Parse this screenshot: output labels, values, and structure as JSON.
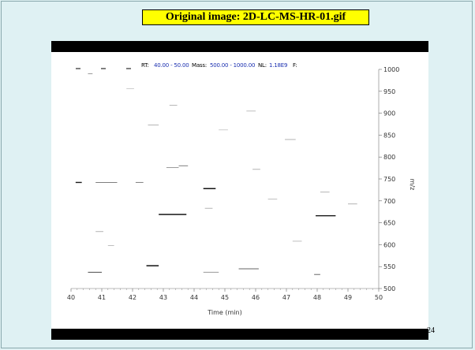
{
  "slide": {
    "title": "Original image: 2D-LC-MS-HR-01.gif",
    "page_number": "24"
  },
  "header": {
    "rt_label": "RT:",
    "rt_value": "40.00 - 50.00",
    "mass_label": "Mass:",
    "mass_value": "500.00 - 1000.00",
    "nl_label": "NL:",
    "nl_value": "1.18E9",
    "f_label": "F:"
  },
  "colors": {
    "background": "#dff1f3",
    "title_highlight": "#ffff00",
    "header_value": "#1a2fb0",
    "peak": "#000000"
  },
  "chart_data": {
    "type": "scatter",
    "title": "",
    "xlabel": "Time (min)",
    "ylabel": "m/z",
    "xlim": [
      40,
      50
    ],
    "ylim": [
      500,
      1000
    ],
    "x_ticks": [
      "40",
      "41",
      "42",
      "43",
      "44",
      "45",
      "46",
      "47",
      "48",
      "49",
      "50"
    ],
    "y_ticks": [
      "500",
      "550",
      "600",
      "650",
      "700",
      "750",
      "800",
      "850",
      "900",
      "950",
      "1000"
    ],
    "grid": false,
    "peaks": [
      {
        "x0": 40.15,
        "x1": 40.35,
        "y": 742,
        "intensity": 0.9
      },
      {
        "x0": 40.8,
        "x1": 41.5,
        "y": 742,
        "intensity": 0.5
      },
      {
        "x0": 42.1,
        "x1": 42.35,
        "y": 742,
        "intensity": 0.5
      },
      {
        "x0": 42.85,
        "x1": 43.75,
        "y": 669,
        "intensity": 1.0
      },
      {
        "x0": 44.3,
        "x1": 44.7,
        "y": 728,
        "intensity": 1.0
      },
      {
        "x0": 47.95,
        "x1": 48.6,
        "y": 666,
        "intensity": 0.9
      },
      {
        "x0": 42.45,
        "x1": 42.85,
        "y": 552,
        "intensity": 1.0
      },
      {
        "x0": 40.55,
        "x1": 41.0,
        "y": 537,
        "intensity": 0.7
      },
      {
        "x0": 45.45,
        "x1": 46.1,
        "y": 545,
        "intensity": 0.6
      },
      {
        "x0": 44.3,
        "x1": 44.8,
        "y": 537,
        "intensity": 0.4
      },
      {
        "x0": 43.5,
        "x1": 43.8,
        "y": 780,
        "intensity": 0.5
      },
      {
        "x0": 43.1,
        "x1": 43.5,
        "y": 776,
        "intensity": 0.4
      },
      {
        "x0": 42.5,
        "x1": 42.85,
        "y": 873,
        "intensity": 0.3
      },
      {
        "x0": 43.2,
        "x1": 43.45,
        "y": 918,
        "intensity": 0.3
      },
      {
        "x0": 46.95,
        "x1": 47.3,
        "y": 840,
        "intensity": 0.3
      },
      {
        "x0": 47.9,
        "x1": 48.1,
        "y": 532,
        "intensity": 0.6
      },
      {
        "x0": 45.9,
        "x1": 46.15,
        "y": 772,
        "intensity": 0.3
      },
      {
        "x0": 44.35,
        "x1": 44.6,
        "y": 683,
        "intensity": 0.3
      },
      {
        "x0": 40.8,
        "x1": 41.05,
        "y": 630,
        "intensity": 0.3
      },
      {
        "x0": 40.55,
        "x1": 40.7,
        "y": 990,
        "intensity": 0.4
      },
      {
        "x0": 48.1,
        "x1": 48.4,
        "y": 720,
        "intensity": 0.3
      },
      {
        "x0": 49.0,
        "x1": 49.3,
        "y": 693,
        "intensity": 0.3
      },
      {
        "x0": 41.2,
        "x1": 41.4,
        "y": 598,
        "intensity": 0.25
      },
      {
        "x0": 46.4,
        "x1": 46.7,
        "y": 704,
        "intensity": 0.25
      },
      {
        "x0": 45.7,
        "x1": 46.0,
        "y": 905,
        "intensity": 0.25
      },
      {
        "x0": 47.2,
        "x1": 47.5,
        "y": 608,
        "intensity": 0.25
      },
      {
        "x0": 41.8,
        "x1": 42.05,
        "y": 956,
        "intensity": 0.2
      },
      {
        "x0": 44.8,
        "x1": 45.1,
        "y": 862,
        "intensity": 0.2
      }
    ]
  }
}
